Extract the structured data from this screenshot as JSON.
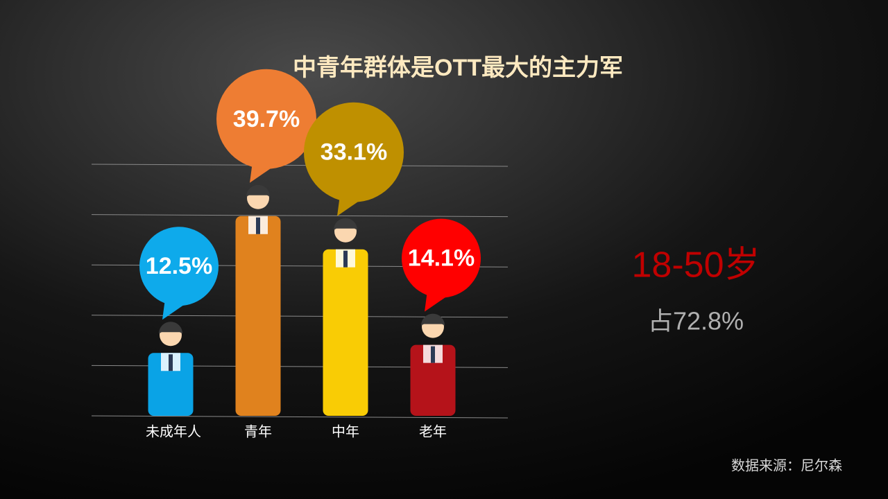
{
  "chart_data": {
    "type": "bar",
    "title": "中青年群体是OTT最大的主力军",
    "categories": [
      "未成年人",
      "青年",
      "中年",
      "老年"
    ],
    "values": [
      12.5,
      39.7,
      33.1,
      14.1
    ],
    "value_labels": [
      "12.5%",
      "39.7%",
      "33.1%",
      "14.1%"
    ],
    "colors": [
      "#0aa3e6",
      "#e0821e",
      "#f9cc05",
      "#b5131a"
    ],
    "bubble_colors": [
      "#0eaaeb",
      "#ee7d33",
      "#bf9000",
      "#ff0000"
    ],
    "ylim": [
      0,
      50
    ],
    "yticks": [
      0,
      10,
      20,
      30,
      40,
      50
    ],
    "grid": true
  },
  "highlight": {
    "range": "18-50岁",
    "share": "占72.8%"
  },
  "source": "数据来源：尼尔森"
}
